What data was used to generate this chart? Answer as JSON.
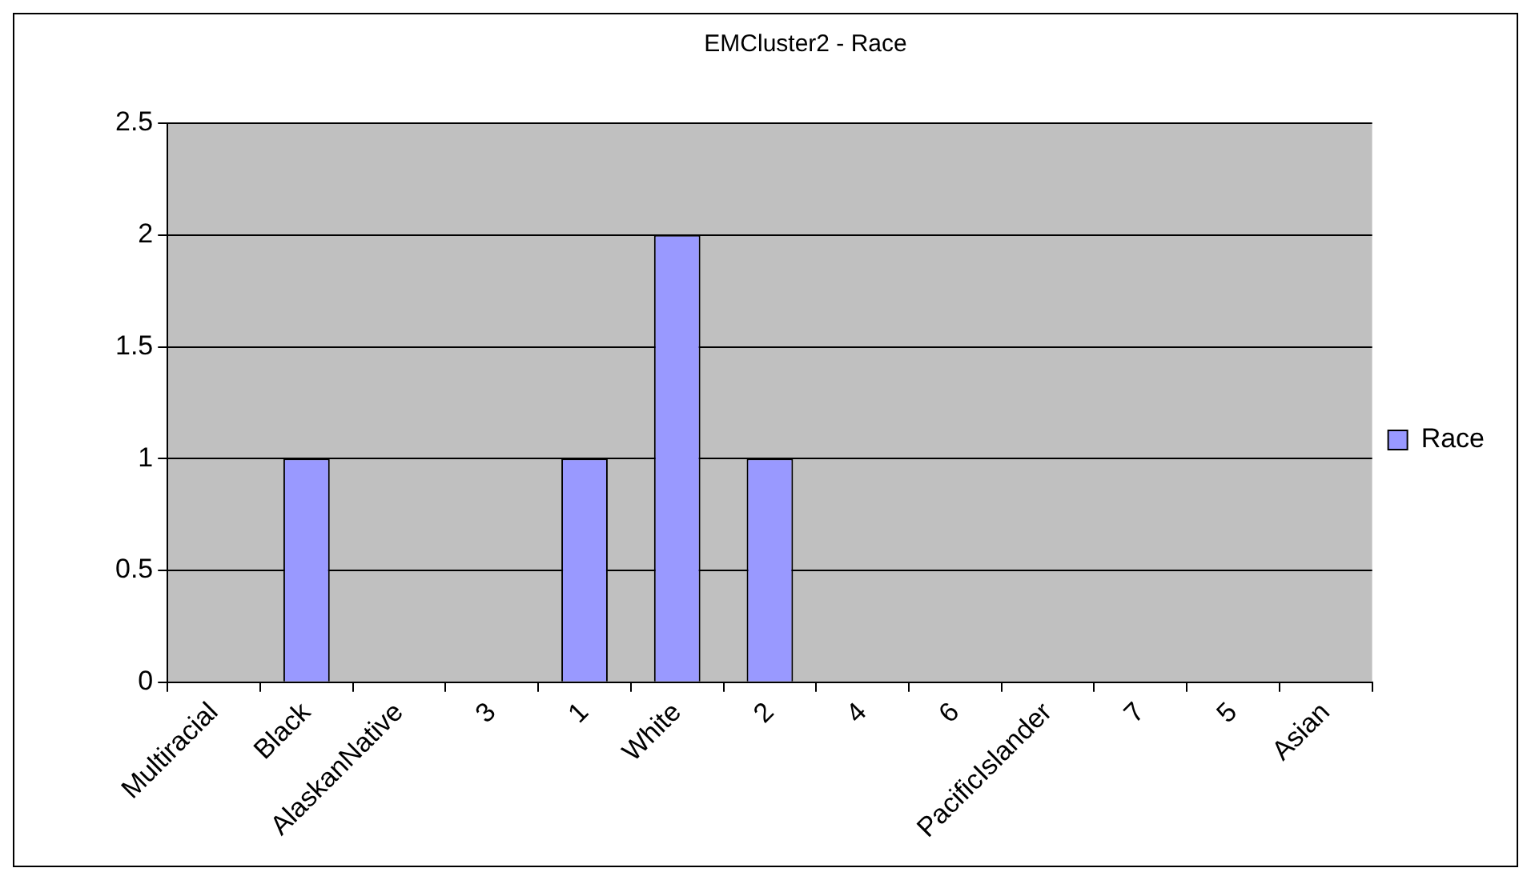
{
  "chart_data": {
    "type": "bar",
    "title": "EMCluster2 - Race",
    "categories": [
      "Multiracial",
      "Black",
      "AlaskanNative",
      "3",
      "1",
      "White",
      "2",
      "4",
      "6",
      "PacificIslander",
      "7",
      "5",
      "Asian"
    ],
    "series": [
      {
        "name": "Race",
        "color": "#9999ff",
        "values": [
          0,
          1,
          0,
          0,
          1,
          2,
          1,
          0,
          0,
          0,
          0,
          0,
          0
        ]
      }
    ],
    "ylim": [
      0,
      2.5
    ],
    "yticks": [
      0,
      0.5,
      1,
      1.5,
      2,
      2.5
    ],
    "grid": "y",
    "legend": "right"
  }
}
